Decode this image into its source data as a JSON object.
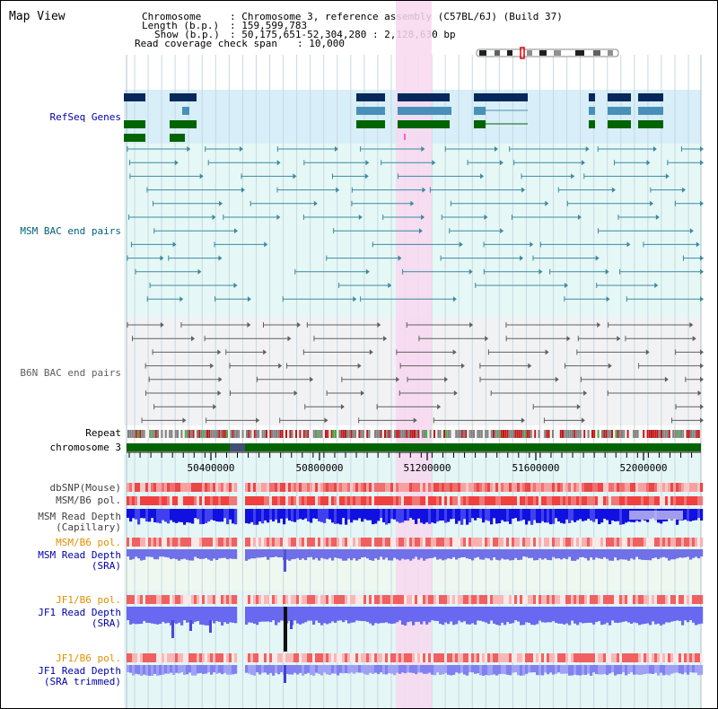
{
  "title": "Map View",
  "info": {
    "chromosome_key": "Chromosome",
    "chromosome_val": ": Chromosome 3, reference assembly (C57BL/6J) (Build 37)",
    "length_key": "Length (b.p.)",
    "length_val": ": 159,599,783",
    "show_key": "Show (b.p.)",
    "show_val": ": 50,175,651-52,304,280 : 2,128,630 bp",
    "span_key": "Read coverage check span",
    "span_val": ": 10,000"
  },
  "tracks": {
    "refseq": "RefSeq Genes",
    "msm_bac": "MSM BAC end pairs",
    "b6n_bac": "B6N BAC end pairs",
    "repeat": "Repeat",
    "chromosome": "chromosome 3",
    "dbsnp": "dbSNP(Mouse)",
    "msm_b6_pol_1": "MSM/B6 pol.",
    "msm_depth_cap": "MSM Read Depth\n(Capillary)",
    "msm_b6_pol_2": "MSM/B6 pol.",
    "msm_depth_sra": "MSM Read Depth\n(SRA)",
    "jf1_b6_pol_1": "JF1/B6 pol.",
    "jf1_depth_sra": "JF1 Read Depth\n(SRA)",
    "jf1_b6_pol_2": "JF1/B6 pol.",
    "jf1_depth_trim": "JF1 Read Depth\n(SRA trimmed)"
  },
  "axis": {
    "ticks": [
      "50400000",
      "50800000",
      "51200000",
      "51600000",
      "52000000"
    ]
  },
  "colors": {
    "refseq_label": "#0000aa",
    "msm_label": "#006080",
    "b6n_label": "#606060",
    "pol_label": "#e09000",
    "sra_label": "#0000aa",
    "highlight": "#f8d8f0",
    "gene_dark": "#06285a",
    "gene_mid": "#4890b8",
    "gene_green": "#006400"
  }
}
